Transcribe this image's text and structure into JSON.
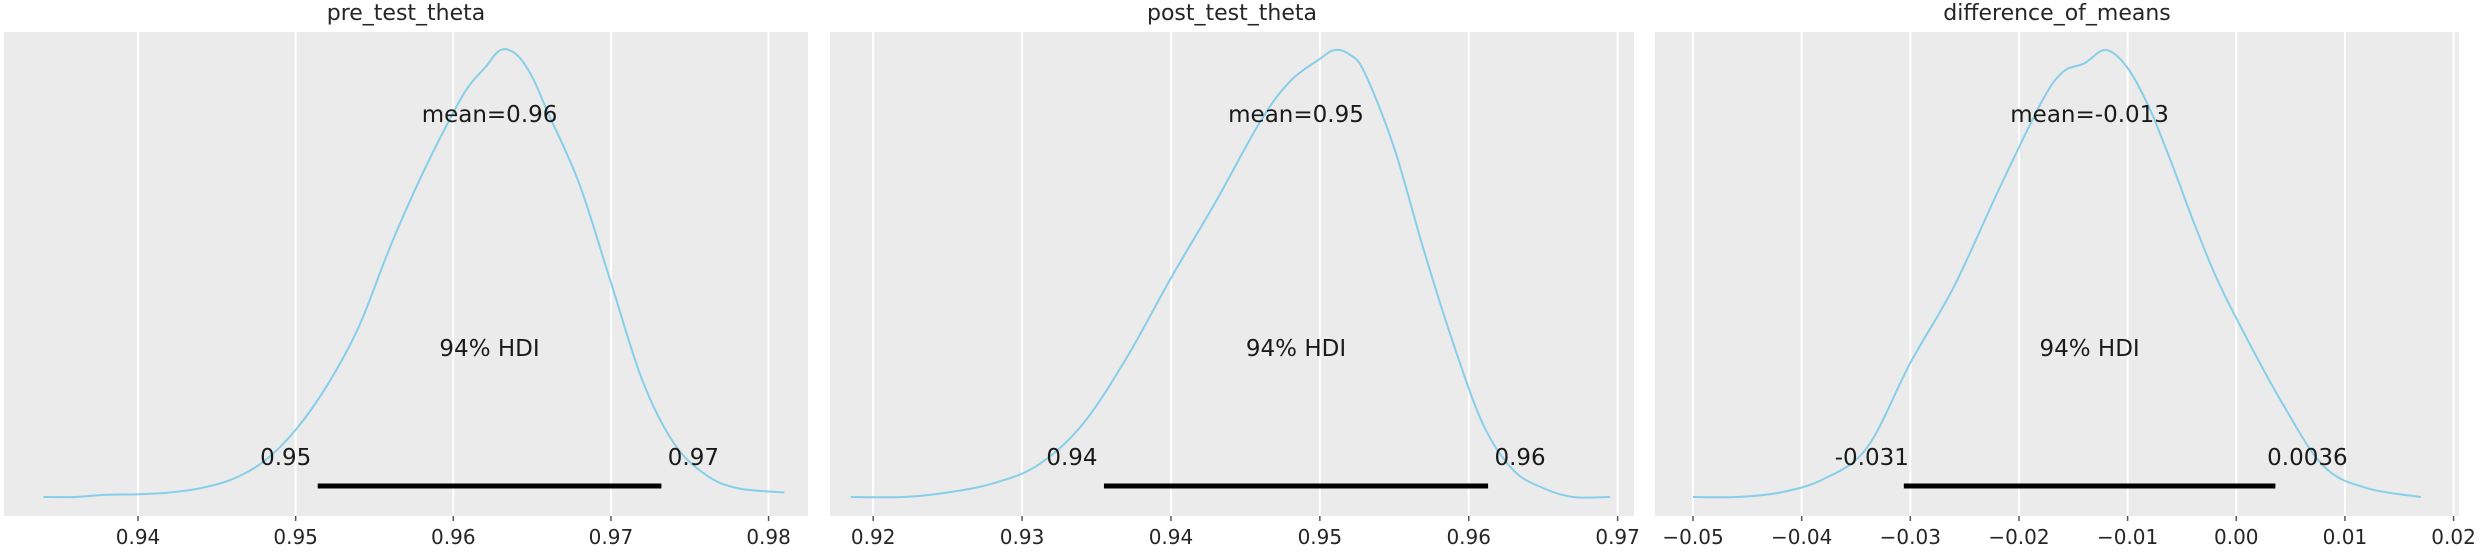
{
  "chart_data": [
    {
      "type": "area",
      "title": "pre_test_theta",
      "xlim": [
        0.9315,
        0.9825
      ],
      "x_ticks": [
        "0.94",
        "0.95",
        "0.96",
        "0.97",
        "0.98"
      ],
      "x_tick_values": [
        0.94,
        0.95,
        0.96,
        0.97,
        0.98
      ],
      "grid": true,
      "curve_color": "#87ceeb",
      "density": {
        "x": [
          0.934,
          0.936,
          0.938,
          0.94,
          0.942,
          0.944,
          0.946,
          0.948,
          0.95,
          0.952,
          0.954,
          0.956,
          0.958,
          0.96,
          0.961,
          0.962,
          0.963,
          0.964,
          0.965,
          0.966,
          0.968,
          0.97,
          0.972,
          0.974,
          0.976,
          0.978,
          0.981
        ],
        "y": [
          0.0,
          0.0,
          0.005,
          0.006,
          0.01,
          0.02,
          0.04,
          0.08,
          0.15,
          0.25,
          0.38,
          0.56,
          0.72,
          0.86,
          0.92,
          0.96,
          1.0,
          0.99,
          0.94,
          0.86,
          0.7,
          0.48,
          0.26,
          0.12,
          0.05,
          0.02,
          0.01
        ]
      },
      "mean_label": "mean=0.96",
      "hdi_label": "94% HDI",
      "hdi": [
        0.9514,
        0.9732
      ],
      "hdi_low_label": "0.95",
      "hdi_high_label": "0.97"
    },
    {
      "type": "area",
      "title": "post_test_theta",
      "xlim": [
        0.9171,
        0.9711
      ],
      "x_ticks": [
        "0.92",
        "0.93",
        "0.94",
        "0.95",
        "0.96",
        "0.97"
      ],
      "x_tick_values": [
        0.92,
        0.93,
        0.94,
        0.95,
        0.96,
        0.97
      ],
      "grid": true,
      "curve_color": "#87ceeb",
      "density": {
        "x": [
          0.9185,
          0.922,
          0.925,
          0.928,
          0.931,
          0.934,
          0.937,
          0.94,
          0.943,
          0.946,
          0.948,
          0.95,
          0.951,
          0.952,
          0.953,
          0.955,
          0.957,
          0.959,
          0.961,
          0.963,
          0.965,
          0.967,
          0.9695
        ],
        "y": [
          0.0,
          0.0,
          0.01,
          0.03,
          0.07,
          0.16,
          0.31,
          0.49,
          0.66,
          0.84,
          0.93,
          0.98,
          1.0,
          0.99,
          0.95,
          0.78,
          0.55,
          0.34,
          0.16,
          0.06,
          0.02,
          0.0,
          0.0
        ]
      },
      "mean_label": "mean=0.95",
      "hdi_label": "94% HDI",
      "hdi": [
        0.9355,
        0.9613
      ],
      "hdi_low_label": "0.94",
      "hdi_high_label": "0.96"
    },
    {
      "type": "area",
      "title": "difference_of_means",
      "xlim": [
        -0.0535,
        0.0205
      ],
      "x_ticks": [
        "−0.05",
        "−0.04",
        "−0.03",
        "−0.02",
        "−0.01",
        "0.00",
        "0.01",
        "0.02"
      ],
      "x_tick_values": [
        -0.05,
        -0.04,
        -0.03,
        -0.02,
        -0.01,
        0.0,
        0.01,
        0.02
      ],
      "grid": true,
      "curve_color": "#87ceeb",
      "density": {
        "x": [
          -0.05,
          -0.046,
          -0.042,
          -0.038,
          -0.034,
          -0.03,
          -0.026,
          -0.022,
          -0.018,
          -0.016,
          -0.014,
          -0.012,
          -0.01,
          -0.008,
          -0.006,
          -0.004,
          -0.002,
          0.0,
          0.004,
          0.008,
          0.012,
          0.017
        ],
        "y": [
          0.0,
          0.0,
          0.01,
          0.04,
          0.11,
          0.3,
          0.47,
          0.68,
          0.88,
          0.95,
          0.97,
          1.0,
          0.96,
          0.87,
          0.75,
          0.62,
          0.5,
          0.4,
          0.22,
          0.07,
          0.02,
          0.0
        ]
      },
      "mean_label": "mean=-0.013",
      "hdi_label": "94% HDI",
      "hdi": [
        -0.0306,
        0.0036
      ],
      "hdi_low_label": "-0.031",
      "hdi_high_label": "0.0036"
    }
  ]
}
